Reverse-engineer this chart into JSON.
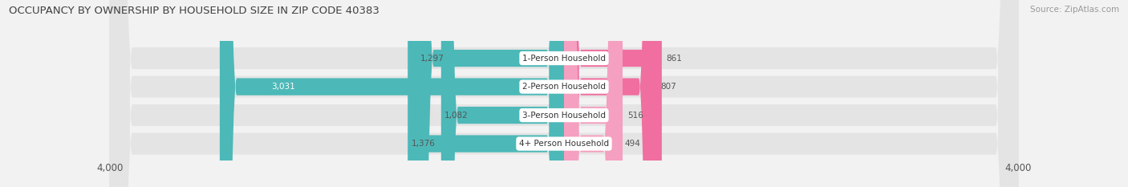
{
  "title": "OCCUPANCY BY OWNERSHIP BY HOUSEHOLD SIZE IN ZIP CODE 40383",
  "source": "Source: ZipAtlas.com",
  "categories": [
    "1-Person Household",
    "2-Person Household",
    "3-Person Household",
    "4+ Person Household"
  ],
  "owner_values": [
    1297,
    3031,
    1082,
    1376
  ],
  "renter_values": [
    861,
    807,
    516,
    494
  ],
  "axis_max": 4000,
  "owner_color": "#4db8b8",
  "renter_color": "#f06fa0",
  "renter_color_light": "#f5a0c0",
  "bg_color": "#f2f2f2",
  "row_bg_color": "#e4e4e4",
  "title_color": "#404040",
  "source_color": "#999999",
  "value_color_dark": "#555555",
  "value_color_white": "#ffffff",
  "bar_height": 0.6,
  "figsize": [
    14.06,
    2.33
  ],
  "dpi": 100
}
